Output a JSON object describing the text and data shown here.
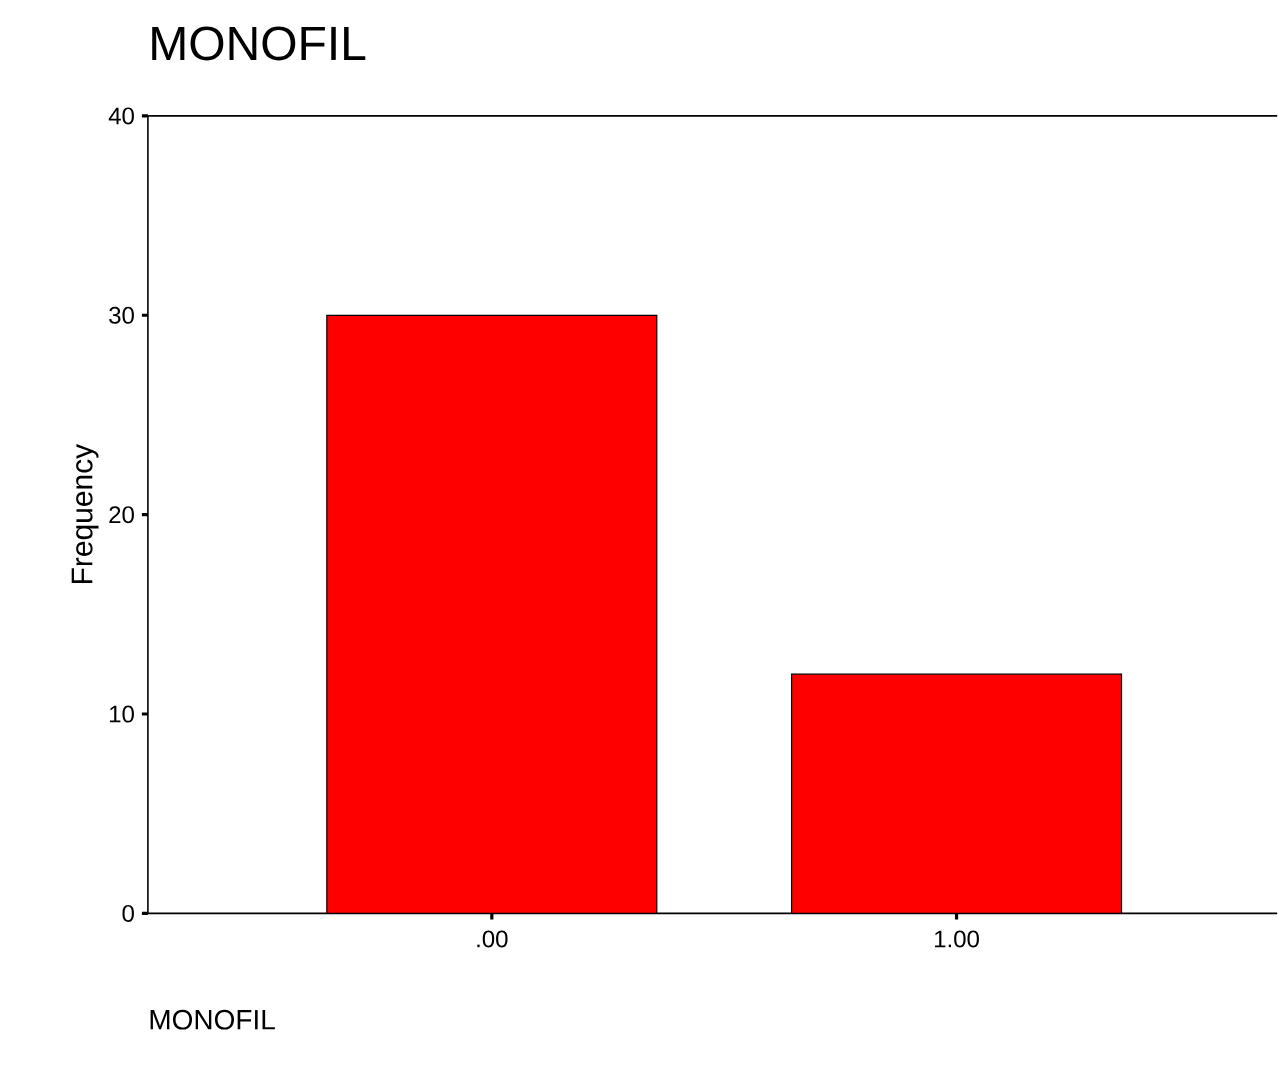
{
  "chart_data": {
    "type": "bar",
    "title": "MONOFIL",
    "xlabel": "MONOFIL",
    "ylabel": "Frequency",
    "categories": [
      ".00",
      "1.00"
    ],
    "values": [
      30,
      12
    ],
    "color": "#ff0000",
    "ylim": [
      0,
      40
    ],
    "yticks": [
      0,
      10,
      20,
      30,
      40
    ],
    "grid": false
  }
}
